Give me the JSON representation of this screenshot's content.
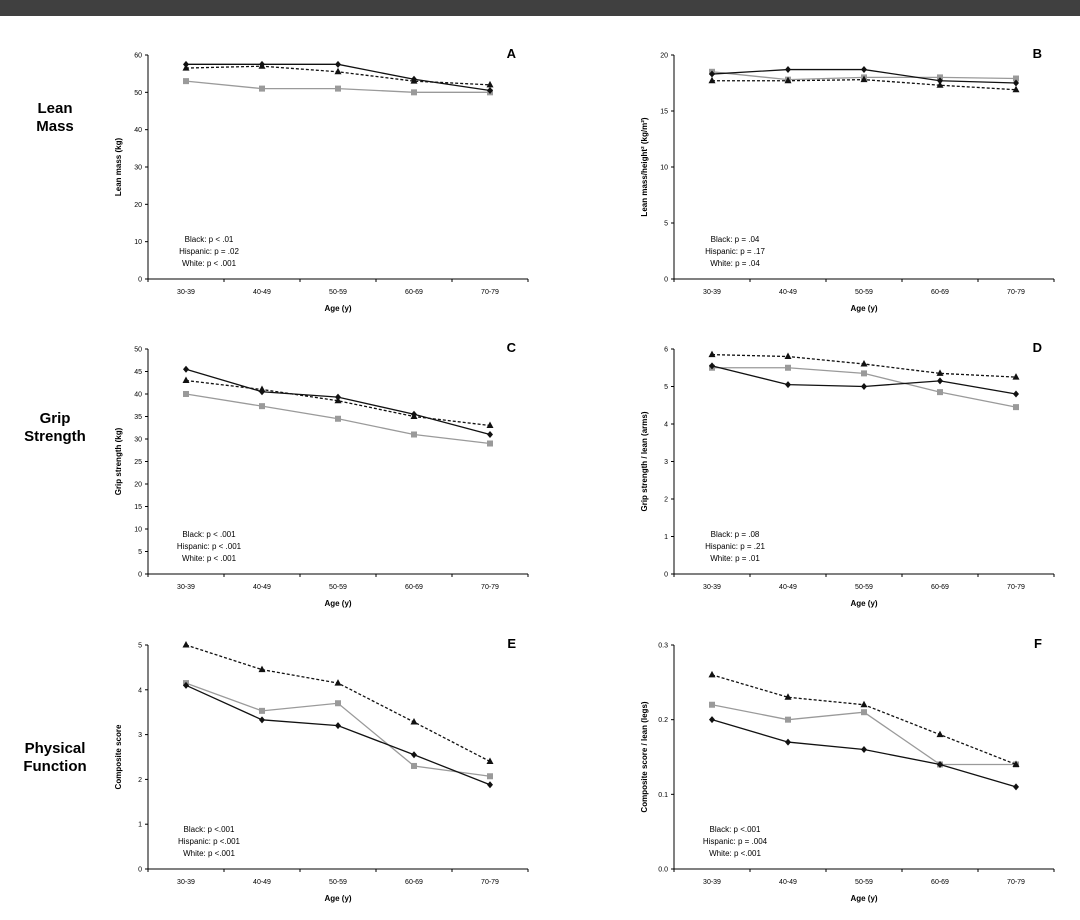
{
  "row_labels": [
    {
      "line1": "Lean",
      "line2": "Mass"
    },
    {
      "line1": "Grip",
      "line2": "Strength"
    },
    {
      "line1": "Physical",
      "line2": "Function"
    }
  ],
  "colors": {
    "black_series": "#111111",
    "hispanic_series": "#111111",
    "white_series": "#9a9a9a",
    "top_bar": "#404040"
  },
  "chart_data": [
    {
      "type": "line",
      "panel_letter": "A",
      "categories": [
        "30-39",
        "40-49",
        "50-59",
        "60-69",
        "70-79"
      ],
      "xlabel": "Age (y)",
      "ylabel": "Lean mass (kg)",
      "ylim": [
        0,
        60
      ],
      "yticks": [
        0,
        10,
        20,
        30,
        40,
        50,
        60
      ],
      "series": [
        {
          "key": "black",
          "values": [
            57.5,
            57.5,
            57.5,
            53.5,
            50.5
          ]
        },
        {
          "key": "hispanic",
          "values": [
            56.5,
            57,
            55.5,
            53,
            52
          ]
        },
        {
          "key": "white",
          "values": [
            53,
            51,
            51,
            50,
            50
          ]
        }
      ],
      "stats": [
        "Black: p < .01",
        "Hispanic: p = .02",
        "White: p < .001"
      ]
    },
    {
      "type": "line",
      "panel_letter": "B",
      "categories": [
        "30-39",
        "40-49",
        "50-59",
        "60-69",
        "70-79"
      ],
      "xlabel": "Age (y)",
      "ylabel": "Lean mass/height² (kg/m²)",
      "ylim": [
        0,
        20
      ],
      "yticks": [
        0,
        5,
        10,
        15,
        20
      ],
      "series": [
        {
          "key": "black",
          "values": [
            18.3,
            18.7,
            18.7,
            17.7,
            17.5
          ]
        },
        {
          "key": "hispanic",
          "values": [
            17.7,
            17.7,
            17.8,
            17.3,
            16.9
          ]
        },
        {
          "key": "white",
          "values": [
            18.5,
            17.8,
            18.0,
            18.0,
            17.9
          ]
        }
      ],
      "stats": [
        "Black: p = .04",
        "Hispanic: p = .17",
        "White: p = .04"
      ]
    },
    {
      "type": "line",
      "panel_letter": "C",
      "categories": [
        "30-39",
        "40-49",
        "50-59",
        "60-69",
        "70-79"
      ],
      "xlabel": "Age (y)",
      "ylabel": "Grip strength (kg)",
      "ylim": [
        0,
        50
      ],
      "yticks": [
        0,
        5,
        10,
        15,
        20,
        25,
        30,
        35,
        40,
        45,
        50
      ],
      "series": [
        {
          "key": "black",
          "values": [
            45.5,
            40.5,
            39.3,
            35.5,
            31
          ]
        },
        {
          "key": "hispanic",
          "values": [
            43,
            41,
            38.5,
            35,
            33
          ]
        },
        {
          "key": "white",
          "values": [
            40,
            37.3,
            34.5,
            31,
            29
          ]
        }
      ],
      "stats": [
        "Black: p < .001",
        "Hispanic: p < .001",
        "White: p < .001"
      ]
    },
    {
      "type": "line",
      "panel_letter": "D",
      "categories": [
        "30-39",
        "40-49",
        "50-59",
        "60-69",
        "70-79"
      ],
      "xlabel": "Age (y)",
      "ylabel": "Grip strength / lean (arms)",
      "ylim": [
        0,
        6
      ],
      "yticks": [
        0,
        1,
        2,
        3,
        4,
        5,
        6
      ],
      "series": [
        {
          "key": "black",
          "values": [
            5.55,
            5.05,
            5.0,
            5.15,
            4.8
          ]
        },
        {
          "key": "hispanic",
          "values": [
            5.85,
            5.8,
            5.6,
            5.35,
            5.25
          ]
        },
        {
          "key": "white",
          "values": [
            5.5,
            5.5,
            5.35,
            4.85,
            4.45
          ]
        }
      ],
      "stats": [
        "Black: p = .08",
        "Hispanic: p = .21",
        "White: p = .01"
      ]
    },
    {
      "type": "line",
      "panel_letter": "E",
      "categories": [
        "30-39",
        "40-49",
        "50-59",
        "60-69",
        "70-79"
      ],
      "xlabel": "Age (y)",
      "ylabel": "Composite score",
      "ylim": [
        0,
        5
      ],
      "yticks": [
        0,
        1,
        2,
        3,
        4,
        5
      ],
      "series": [
        {
          "key": "black",
          "values": [
            4.1,
            3.33,
            3.2,
            2.55,
            1.88
          ]
        },
        {
          "key": "hispanic",
          "values": [
            5.0,
            4.45,
            4.15,
            3.28,
            2.4
          ]
        },
        {
          "key": "white",
          "values": [
            4.15,
            3.53,
            3.7,
            2.3,
            2.07
          ]
        }
      ],
      "stats": [
        "Black: p <.001",
        "Hispanic: p <.001",
        "White: p <.001"
      ]
    },
    {
      "type": "line",
      "panel_letter": "F",
      "categories": [
        "30-39",
        "40-49",
        "50-59",
        "60-69",
        "70-79"
      ],
      "xlabel": "Age (y)",
      "ylabel": "Composite score / lean (legs)",
      "ylim": [
        0,
        0.3
      ],
      "yticks": [
        0,
        0.1,
        0.2,
        0.3
      ],
      "series": [
        {
          "key": "black",
          "values": [
            0.2,
            0.17,
            0.16,
            0.14,
            0.11
          ]
        },
        {
          "key": "hispanic",
          "values": [
            0.26,
            0.23,
            0.22,
            0.18,
            0.14
          ]
        },
        {
          "key": "white",
          "values": [
            0.22,
            0.2,
            0.21,
            0.14,
            0.14
          ]
        }
      ],
      "stats": [
        "Black: p <.001",
        "Hispanic: p = .004",
        "White: p <.001"
      ]
    }
  ]
}
